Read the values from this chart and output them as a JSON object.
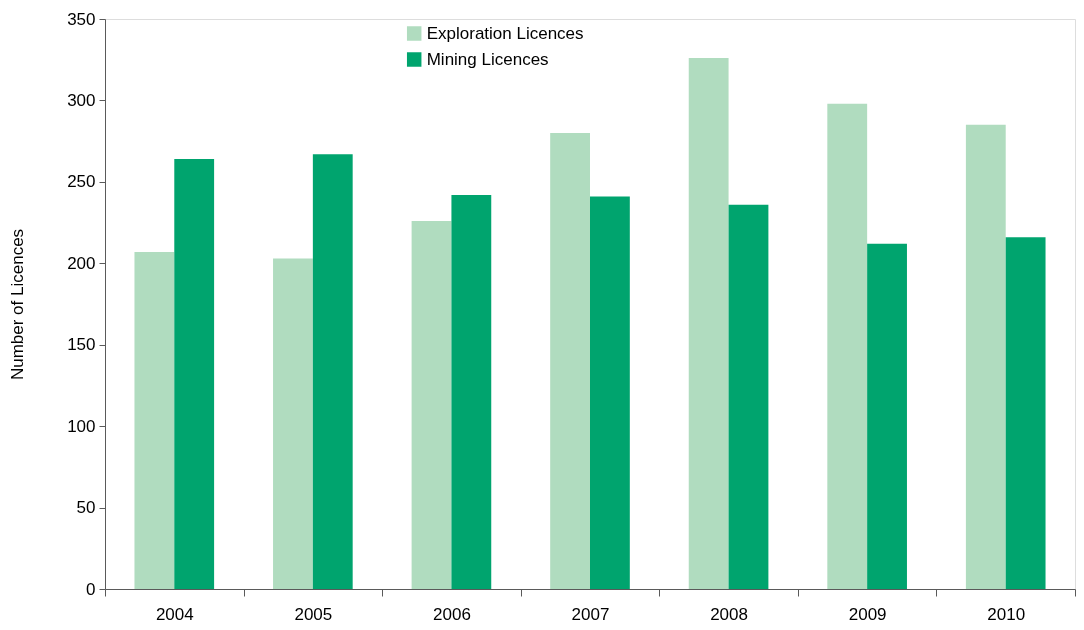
{
  "chart_data": {
    "type": "bar",
    "ylabel": "Number of Licences",
    "categories": [
      "2004",
      "2005",
      "2006",
      "2007",
      "2008",
      "2009",
      "2010"
    ],
    "series": [
      {
        "name": "Exploration Licences",
        "color": "#b0dcbf",
        "values": [
          207,
          203,
          226,
          280,
          326,
          298,
          285
        ]
      },
      {
        "name": "Mining Licences",
        "color": "#00a46e",
        "values": [
          264,
          267,
          242,
          241,
          236,
          212,
          216
        ]
      }
    ],
    "ylim": [
      0,
      350
    ],
    "yticks": [
      0,
      50,
      100,
      150,
      200,
      250,
      300,
      350
    ],
    "grid": false,
    "legend": "top"
  }
}
